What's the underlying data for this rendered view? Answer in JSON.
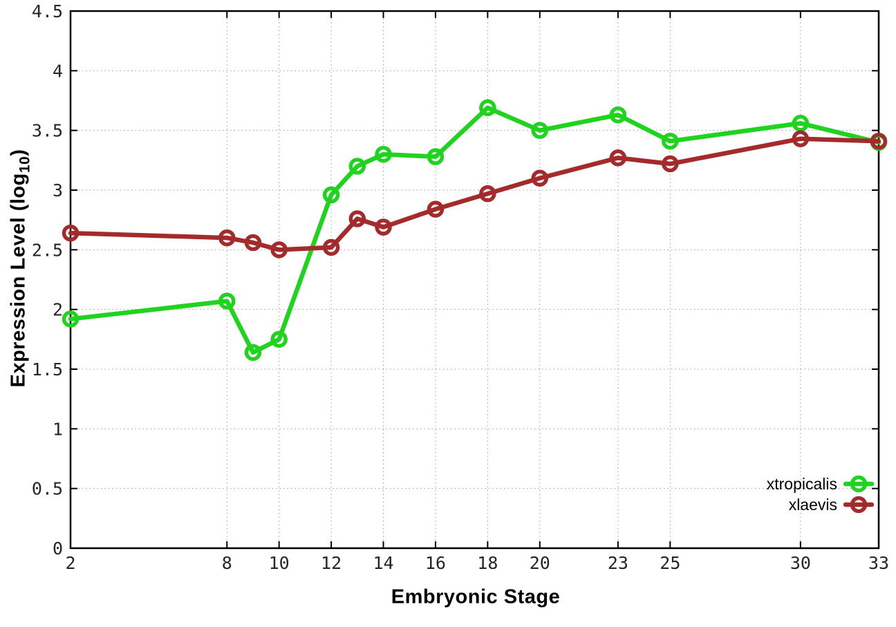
{
  "chart_data": {
    "type": "line",
    "title": "",
    "xlabel": "Embryonic Stage",
    "ylabel": "Expression Level (log10)",
    "ylabel_parts": {
      "prefix": "Expression Level (log",
      "sub": "10",
      "suffix": ")"
    },
    "x": [
      2,
      8,
      9,
      10,
      12,
      13,
      14,
      16,
      18,
      20,
      23,
      25,
      30,
      33
    ],
    "xticks": [
      2,
      8,
      10,
      12,
      14,
      16,
      18,
      20,
      23,
      25,
      30,
      33
    ],
    "yticks": [
      0,
      0.5,
      1,
      1.5,
      2,
      2.5,
      3,
      3.5,
      4,
      4.5
    ],
    "xlim": [
      2,
      33
    ],
    "ylim": [
      0,
      4.5
    ],
    "grid": true,
    "legend_position": "bottom-right",
    "series": [
      {
        "name": "xtropicalis",
        "color": "#1fd31f",
        "values": [
          1.92,
          2.07,
          1.64,
          1.75,
          2.96,
          3.2,
          3.3,
          3.28,
          3.69,
          3.5,
          3.63,
          3.41,
          3.56,
          3.4
        ]
      },
      {
        "name": "xlaevis",
        "color": "#a32b2b",
        "values": [
          2.64,
          2.6,
          2.56,
          2.5,
          2.52,
          2.76,
          2.69,
          2.84,
          2.97,
          3.1,
          3.27,
          3.22,
          3.43,
          3.41
        ]
      }
    ],
    "axis_color": "#000000",
    "grid_color": "#9a9a9a",
    "tick_label_color": "#262626",
    "background": "#ffffff"
  }
}
